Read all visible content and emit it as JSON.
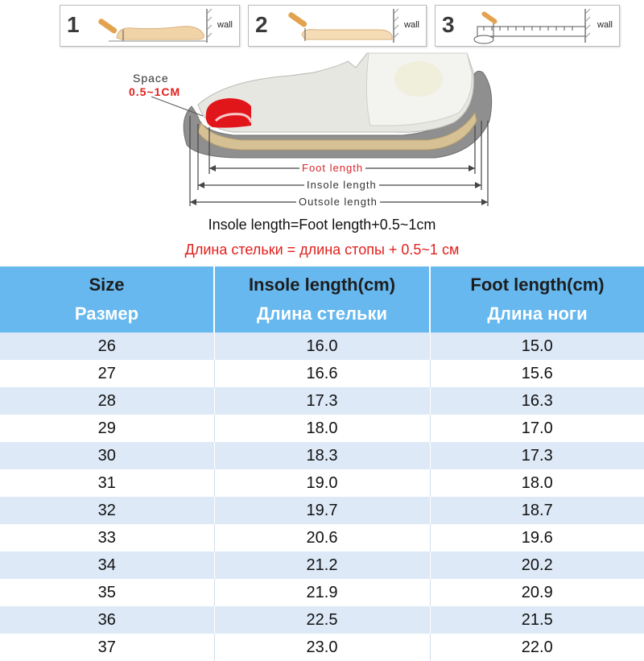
{
  "steps": [
    {
      "num": "1",
      "wall_label": "wall"
    },
    {
      "num": "2",
      "wall_label": "wall"
    },
    {
      "num": "3",
      "wall_label": "wall"
    }
  ],
  "diagram": {
    "space_label": "Space",
    "space_value": "0.5~1CM",
    "foot_length_label": "Foot length",
    "insole_length_label": "Insole length",
    "outsole_length_label": "Outsole length"
  },
  "formula": {
    "en": "Insole length=Foot length+0.5~1cm",
    "ru": "Длина стельки = длина стопы + 0.5~1 см"
  },
  "colors": {
    "header_bg": "#66b8ef",
    "row_shade": "#dde9f7",
    "accent_red": "#e0201c"
  },
  "table": {
    "headers": [
      {
        "en": "Size",
        "ru": "Размер"
      },
      {
        "en": "Insole length(cm)",
        "ru": "Длина стельки"
      },
      {
        "en": "Foot length(cm)",
        "ru": "Длина ноги"
      }
    ],
    "rows": [
      [
        "26",
        "16.0",
        "15.0"
      ],
      [
        "27",
        "16.6",
        "15.6"
      ],
      [
        "28",
        "17.3",
        "16.3"
      ],
      [
        "29",
        "18.0",
        "17.0"
      ],
      [
        "30",
        "18.3",
        "17.3"
      ],
      [
        "31",
        "19.0",
        "18.0"
      ],
      [
        "32",
        "19.7",
        "18.7"
      ],
      [
        "33",
        "20.6",
        "19.6"
      ],
      [
        "34",
        "21.2",
        "20.2"
      ],
      [
        "35",
        "21.9",
        "20.9"
      ],
      [
        "36",
        "22.5",
        "21.5"
      ],
      [
        "37",
        "23.0",
        "22.0"
      ]
    ]
  }
}
